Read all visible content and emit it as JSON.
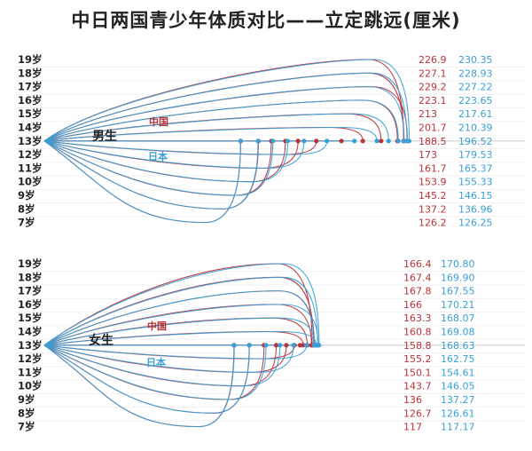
{
  "title": "中日两国青少年体质对比——立定跳远(厘米)",
  "legend": {
    "china": "中国",
    "japan": "日本"
  },
  "colors": {
    "china": "#b8323a",
    "japan": "#3a9fd6",
    "baseline": "#cfcfcf",
    "text": "#222222"
  },
  "chart_data": [
    {
      "type": "line",
      "panel_label": "男生",
      "categories": [
        "19岁",
        "18岁",
        "17岁",
        "16岁",
        "15岁",
        "14岁",
        "13岁",
        "12岁",
        "11岁",
        "10岁",
        "9岁",
        "8岁",
        "7岁"
      ],
      "series": [
        {
          "name": "中国",
          "values": [
            226.9,
            227.1,
            229.2,
            223.1,
            213,
            201.7,
            188.5,
            173,
            161.7,
            153.9,
            145.2,
            137.2,
            126.2
          ],
          "labels": [
            "226.9",
            "227.1",
            "229.2",
            "223.1",
            "213",
            "201.7",
            "188.5",
            "173",
            "161.7",
            "153.9",
            "145.2",
            "137.2",
            "126.2"
          ]
        },
        {
          "name": "日本",
          "values": [
            230.35,
            228.93,
            227.22,
            223.65,
            217.61,
            210.39,
            196.52,
            179.53,
            165.37,
            155.33,
            146.15,
            136.96,
            126.25
          ],
          "labels": [
            "230.35",
            "228.93",
            "227.22",
            "223.65",
            "217.61",
            "210.39",
            "196.52",
            "179.53",
            "165.37",
            "155.33",
            "146.15",
            "136.96",
            "126.25"
          ]
        }
      ]
    },
    {
      "type": "line",
      "panel_label": "女生",
      "categories": [
        "19岁",
        "18岁",
        "17岁",
        "16岁",
        "15岁",
        "14岁",
        "13岁",
        "12岁",
        "11岁",
        "10岁",
        "9岁",
        "8岁",
        "7岁"
      ],
      "series": [
        {
          "name": "中国",
          "values": [
            166.4,
            167.4,
            167.8,
            166,
            163.3,
            160.8,
            158.8,
            155.2,
            150.1,
            143.7,
            136,
            126.7,
            117
          ],
          "labels": [
            "166.4",
            "167.4",
            "167.8",
            "166",
            "163.3",
            "160.8",
            "158.8",
            "155.2",
            "150.1",
            "143.7",
            "136",
            "126.7",
            "117"
          ]
        },
        {
          "name": "日本",
          "values": [
            170.8,
            169.9,
            167.55,
            170.21,
            168.07,
            169.08,
            168.63,
            162.75,
            154.61,
            146.05,
            137.27,
            126.61,
            117.17
          ],
          "labels": [
            "170.80",
            "169.90",
            "167.55",
            "170.21",
            "168.07",
            "169.08",
            "168.63",
            "162.75",
            "154.61",
            "146.05",
            "137.27",
            "126.61",
            "117.17"
          ]
        }
      ]
    }
  ]
}
